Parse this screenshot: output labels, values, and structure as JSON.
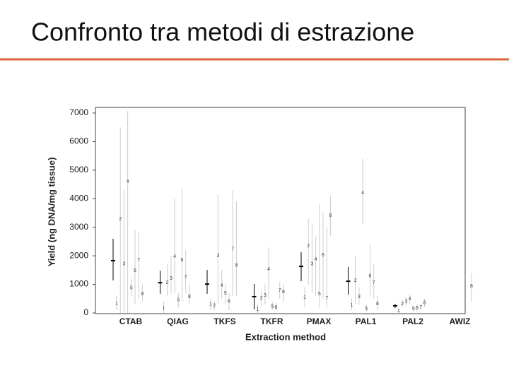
{
  "slide_title": "Confronto tra metodi di estrazione",
  "chart_data": {
    "type": "dot-range",
    "y_label": "Yield (ng DNA/mg tissue)",
    "x_label": "Extraction method",
    "ylim": [
      0,
      7000
    ],
    "yticks": [
      0,
      1000,
      2000,
      3000,
      4000,
      5000,
      6000,
      7000
    ],
    "categories": [
      "CTAB",
      "QIAG",
      "TKFS",
      "TKFR",
      "PMAX",
      "PAL1",
      "PAL2",
      "AWIZ"
    ],
    "mean_color": "#000000",
    "point_color": "#444444",
    "range_color": "#cccccc",
    "groups": [
      {
        "mean": 1830,
        "mean_low": 1140,
        "mean_high": 2600,
        "points": [
          {
            "label": "1",
            "value": 320,
            "low": 100,
            "high": 600
          },
          {
            "label": "2",
            "value": 3290,
            "low": 0,
            "high": 6500
          },
          {
            "label": "3",
            "value": 1710,
            "low": 0,
            "high": 4330
          },
          {
            "label": "4",
            "value": 4600,
            "low": 0,
            "high": 7070
          },
          {
            "label": "5",
            "value": 870,
            "low": 580,
            "high": 1200
          },
          {
            "label": "6",
            "value": 1480,
            "low": 320,
            "high": 2900
          },
          {
            "label": "7",
            "value": 1850,
            "low": 500,
            "high": 2850
          },
          {
            "label": "8",
            "value": 670,
            "low": 400,
            "high": 1000
          }
        ]
      },
      {
        "mean": 1060,
        "mean_low": 670,
        "mean_high": 1480,
        "points": [
          {
            "label": "1",
            "value": 170,
            "low": 0,
            "high": 400
          },
          {
            "label": "2",
            "value": 1060,
            "low": 600,
            "high": 1700
          },
          {
            "label": "3",
            "value": 1210,
            "low": 700,
            "high": 2000
          },
          {
            "label": "4",
            "value": 1980,
            "low": 700,
            "high": 4000
          },
          {
            "label": "5",
            "value": 450,
            "low": 200,
            "high": 700
          },
          {
            "label": "6",
            "value": 1850,
            "low": 400,
            "high": 4350
          },
          {
            "label": "7",
            "value": 1260,
            "low": 700,
            "high": 2200
          },
          {
            "label": "8",
            "value": 570,
            "low": 300,
            "high": 1000
          }
        ]
      },
      {
        "mean": 1010,
        "mean_low": 670,
        "mean_high": 1510,
        "points": [
          {
            "label": "1",
            "value": 300,
            "low": 100,
            "high": 500
          },
          {
            "label": "2",
            "value": 250,
            "low": 100,
            "high": 400
          },
          {
            "label": "3",
            "value": 2000,
            "low": 300,
            "high": 4150
          },
          {
            "label": "4",
            "value": 960,
            "low": 500,
            "high": 1500
          },
          {
            "label": "5",
            "value": 690,
            "low": 300,
            "high": 1000
          },
          {
            "label": "6",
            "value": 400,
            "low": 100,
            "high": 700
          },
          {
            "label": "7",
            "value": 2230,
            "low": 600,
            "high": 4300
          },
          {
            "label": "8",
            "value": 1660,
            "low": 600,
            "high": 3900
          }
        ]
      },
      {
        "mean": 570,
        "mean_low": 120,
        "mean_high": 1010,
        "points": [
          {
            "label": "1",
            "value": 120,
            "low": 0,
            "high": 300
          },
          {
            "label": "2",
            "value": 520,
            "low": 200,
            "high": 800
          },
          {
            "label": "3",
            "value": 620,
            "low": 300,
            "high": 1000
          },
          {
            "label": "4",
            "value": 1530,
            "low": 500,
            "high": 2300
          },
          {
            "label": "5",
            "value": 220,
            "low": 100,
            "high": 400
          },
          {
            "label": "6",
            "value": 200,
            "low": 100,
            "high": 350
          },
          {
            "label": "7",
            "value": 790,
            "low": 500,
            "high": 1100
          },
          {
            "label": "8",
            "value": 740,
            "low": 400,
            "high": 1000
          }
        ]
      },
      {
        "mean": 1630,
        "mean_low": 1110,
        "mean_high": 2130,
        "points": [
          {
            "label": "1",
            "value": 540,
            "low": 200,
            "high": 900
          },
          {
            "label": "2",
            "value": 2350,
            "low": 1000,
            "high": 3300
          },
          {
            "label": "3",
            "value": 1710,
            "low": 700,
            "high": 3100
          },
          {
            "label": "4",
            "value": 1880,
            "low": 600,
            "high": 2700
          },
          {
            "label": "5",
            "value": 670,
            "low": 200,
            "high": 3800
          },
          {
            "label": "6",
            "value": 2030,
            "low": 500,
            "high": 3500
          },
          {
            "label": "7",
            "value": 520,
            "low": 200,
            "high": 3000
          },
          {
            "label": "8",
            "value": 3410,
            "low": 2700,
            "high": 4100
          }
        ]
      },
      {
        "mean": 1110,
        "mean_low": 640,
        "mean_high": 1610,
        "points": [
          {
            "label": "1",
            "value": 270,
            "low": 100,
            "high": 500
          },
          {
            "label": "2",
            "value": 1140,
            "low": 300,
            "high": 2000
          },
          {
            "label": "3",
            "value": 570,
            "low": 300,
            "high": 900
          },
          {
            "label": "4",
            "value": 4200,
            "low": 3100,
            "high": 5400
          },
          {
            "label": "5",
            "value": 150,
            "low": 50,
            "high": 300
          },
          {
            "label": "6",
            "value": 1290,
            "low": 600,
            "high": 2400
          },
          {
            "label": "7",
            "value": 1060,
            "low": 500,
            "high": 1700
          },
          {
            "label": "8",
            "value": 320,
            "low": 100,
            "high": 600
          }
        ]
      },
      {
        "mean": 250,
        "mean_low": 170,
        "mean_high": 320,
        "points": [
          {
            "label": "1",
            "value": 70,
            "low": 0,
            "high": 150
          },
          {
            "label": "2",
            "value": 320,
            "low": 200,
            "high": 450
          },
          {
            "label": "3",
            "value": 400,
            "low": 250,
            "high": 550
          },
          {
            "label": "4",
            "value": 490,
            "low": 300,
            "high": 650
          },
          {
            "label": "5",
            "value": 150,
            "low": 50,
            "high": 250
          },
          {
            "label": "6",
            "value": 170,
            "low": 50,
            "high": 300
          },
          {
            "label": "7",
            "value": 200,
            "low": 100,
            "high": 300
          },
          {
            "label": "8",
            "value": 350,
            "low": 200,
            "high": 500
          }
        ]
      },
      {
        "mean": null,
        "mean_low": null,
        "mean_high": null,
        "points": [
          null,
          null,
          null,
          null,
          null,
          null,
          null,
          {
            "label": "8",
            "value": 940,
            "low": 400,
            "high": 1400
          }
        ]
      }
    ]
  }
}
